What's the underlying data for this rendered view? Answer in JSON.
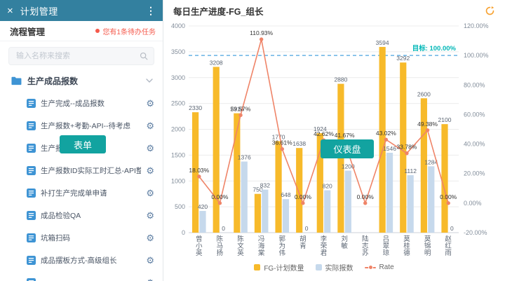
{
  "colors": {
    "header_bar": "#33809f",
    "notice_red": "#f5594b",
    "badge_teal": "#12a3a0",
    "icon_blue": "#3e94d4"
  },
  "icons": {
    "close_glyph": "×",
    "menu_glyph": "⋮",
    "gear_glyph": "⚙"
  },
  "overlays": {
    "form_badge": "表单",
    "dashboard_badge": "仪表盘"
  },
  "sidebar": {
    "title": "计划管理",
    "process": {
      "title": "流程管理",
      "notice": "您有1条待办任务"
    },
    "search_placeholder": "输入名称来搜索",
    "folder": {
      "label": "生产成品报数"
    },
    "items": [
      {
        "label": "生产完成--成品报数"
      },
      {
        "label": "生产报数+考勤-API--待考虑"
      },
      {
        "label": "生产报数"
      },
      {
        "label": "生产报数ID实际工时汇总-API整理"
      },
      {
        "label": "补打生产完成单申请"
      },
      {
        "label": "成品检验QA"
      },
      {
        "label": "坑箱扫码"
      },
      {
        "label": "成品摆板方式-高级组长"
      },
      {
        "label": ""
      }
    ]
  },
  "chart": {
    "title": "每日生产进度-FG_组长",
    "legend": [
      "FG-计划数量",
      "实际报数",
      "Rate"
    ],
    "colors": {
      "plan": "#f7ba2a",
      "actual": "#c6d9ec",
      "rate": "#ef8468",
      "target_line": "#4aa3df",
      "target_text": "#00b7b7",
      "grid": "#ececec",
      "axis": "#ccd2d9"
    }
  },
  "chart_data": {
    "type": "bar+line",
    "title": "每日生产进度-FG_组长",
    "categories": [
      "曾小英",
      "陈马扬",
      "陈文英",
      "冯海棠",
      "郭为伟",
      "胡青",
      "李荣君",
      "刘敏",
      "陆志苏",
      "吕翠琼",
      "莫桂德",
      "莫锦明",
      "赵红雨"
    ],
    "series": [
      {
        "name": "FG-计划数量",
        "type": "bar",
        "axis": "left",
        "values": [
          2330,
          3208,
          2310,
          750,
          1770,
          1638,
          1924,
          2880,
          null,
          3594,
          3292,
          2600,
          2100
        ]
      },
      {
        "name": "实际报数",
        "type": "bar",
        "axis": "left",
        "values": [
          420,
          0,
          1376,
          832,
          648,
          0,
          820,
          1200,
          null,
          1546,
          1112,
          1284,
          0
        ]
      },
      {
        "name": "Rate",
        "type": "line",
        "axis": "right",
        "unit": "%",
        "values": [
          18.03,
          0.0,
          59.57,
          110.93,
          36.61,
          0.0,
          42.62,
          41.67,
          0.0,
          43.02,
          33.78,
          49.38,
          0.0
        ]
      }
    ],
    "left_axis": {
      "min": 0,
      "max": 4000,
      "ticks": [
        0,
        500,
        1000,
        1500,
        2000,
        2500,
        3000,
        3500,
        4000
      ]
    },
    "right_axis": {
      "min": -20,
      "max": 120,
      "step": 20,
      "ticks": [
        "-20.00%",
        "0.00%",
        "20.00%",
        "40.00%",
        "60.00%",
        "80.00%",
        "100.00%",
        "120.00%"
      ]
    },
    "target": {
      "value": 100,
      "label": "目标: 100.00%"
    },
    "legend_position": "bottom",
    "grid": true
  }
}
